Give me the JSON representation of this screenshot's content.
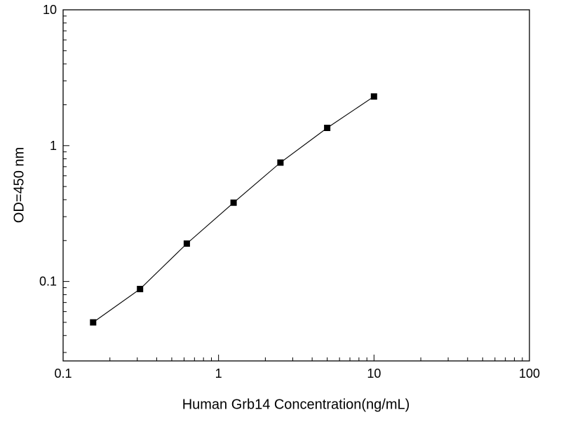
{
  "chart_data": {
    "type": "line",
    "x": [
      0.156,
      0.3125,
      0.625,
      1.25,
      2.5,
      5,
      10
    ],
    "y": [
      0.05,
      0.088,
      0.19,
      0.38,
      0.75,
      1.35,
      2.3
    ],
    "title": "",
    "xlabel": "Human Grb14 Concentration(ng/mL)",
    "ylabel": "OD=450 nm",
    "xscale": "log",
    "yscale": "log",
    "xlim": [
      0.1,
      100
    ],
    "ylim": [
      0.026,
      10
    ],
    "x_tick_values": [
      0.1,
      1,
      10,
      100
    ],
    "x_tick_labels": [
      "0.1",
      "1",
      "10",
      "100"
    ],
    "y_tick_values": [
      0.1,
      1,
      10
    ],
    "y_tick_labels": [
      "0.1",
      "1",
      "10"
    ],
    "marker": "filled-square",
    "marker_color": "#000000",
    "line_color": "#000000",
    "grid": false,
    "legend": "none",
    "background": "#ffffff"
  }
}
